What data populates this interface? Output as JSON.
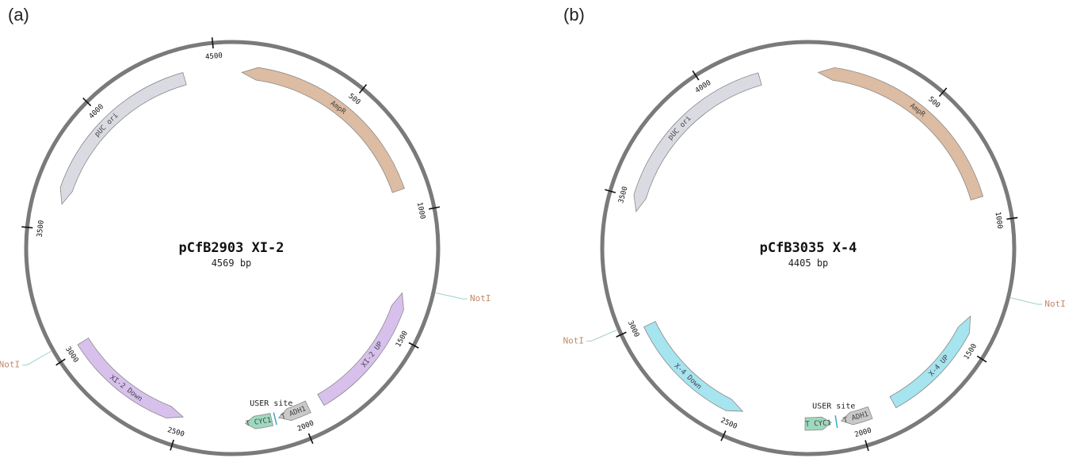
{
  "panels": [
    {
      "panel_label": "(a)",
      "name": "pCfB2903 XI-2",
      "size_label": "4569 bp",
      "length_bp": 4569,
      "ticks": [
        {
          "bp": 500,
          "label": "500"
        },
        {
          "bp": 1000,
          "label": "1000"
        },
        {
          "bp": 1500,
          "label": "1500"
        },
        {
          "bp": 2000,
          "label": "2000"
        },
        {
          "bp": 2500,
          "label": "2500"
        },
        {
          "bp": 3000,
          "label": "3000"
        },
        {
          "bp": 3500,
          "label": "3500"
        },
        {
          "bp": 4000,
          "label": "4000"
        },
        {
          "bp": 4500,
          "label": "4500"
        }
      ],
      "features": [
        {
          "label": "AmpR",
          "start_bp": 40,
          "end_bp": 900,
          "direction": "reverse",
          "color": "#dcbca3"
        },
        {
          "label": "XI-2 UP",
          "start_bp": 1330,
          "end_bp": 1900,
          "direction": "reverse",
          "color": "#d7c1ec"
        },
        {
          "label": "T ADH1",
          "start_bp": 1960,
          "end_bp": 2090,
          "direction": "forward",
          "color": "#c9c9c9"
        },
        {
          "label": "T CYC1",
          "start_bp": 2120,
          "end_bp": 2230,
          "direction": "forward",
          "color": "#9ed9bf"
        },
        {
          "label": "XI-2 Down",
          "start_bp": 2490,
          "end_bp": 3020,
          "direction": "reverse",
          "color": "#d7c1ec"
        },
        {
          "label": "pUC ori",
          "start_bp": 3610,
          "end_bp": 4370,
          "direction": "reverse",
          "color": "#dadbe2"
        }
      ],
      "sites": [
        {
          "label": "NotI",
          "bp": 1300
        },
        {
          "label": "NotI",
          "bp": 3050
        }
      ],
      "user_site": {
        "label": "USER site",
        "bp": 2105
      }
    },
    {
      "panel_label": "(b)",
      "name": "pCfB3035 X-4",
      "size_label": "4405 bp",
      "length_bp": 4405,
      "ticks": [
        {
          "bp": 500,
          "label": "500"
        },
        {
          "bp": 1000,
          "label": "1000"
        },
        {
          "bp": 1500,
          "label": "1500"
        },
        {
          "bp": 2000,
          "label": "2000"
        },
        {
          "bp": 2500,
          "label": "2500"
        },
        {
          "bp": 3000,
          "label": "3000"
        },
        {
          "bp": 3500,
          "label": "3500"
        },
        {
          "bp": 4000,
          "label": "4000"
        }
      ],
      "features": [
        {
          "label": "AmpR",
          "start_bp": 40,
          "end_bp": 900,
          "direction": "reverse",
          "color": "#dcbca3"
        },
        {
          "label": "X-4 UP",
          "start_bp": 1380,
          "end_bp": 1850,
          "direction": "reverse",
          "color": "#a6e4ef"
        },
        {
          "label": "T ADH1",
          "start_bp": 1950,
          "end_bp": 2070,
          "direction": "forward",
          "color": "#c9c9c9"
        },
        {
          "label": "T CYC1",
          "start_bp": 2110,
          "end_bp": 2215,
          "direction": "reverse",
          "color": "#9ed9bf"
        },
        {
          "label": "X-4 Down",
          "start_bp": 2470,
          "end_bp": 2990,
          "direction": "reverse",
          "color": "#a6e4ef"
        },
        {
          "label": "pUC ori",
          "start_bp": 3450,
          "end_bp": 4210,
          "direction": "reverse",
          "color": "#dadbe2"
        }
      ],
      "sites": [
        {
          "label": "NotI",
          "bp": 1270
        },
        {
          "label": "NotI",
          "bp": 3020
        }
      ],
      "user_site": {
        "label": "USER site",
        "bp": 2090
      }
    }
  ],
  "colors": {
    "backbone": "#7a7a7a",
    "site_label": "#c08a6a",
    "site_line": "#9ecfcf",
    "feature_stroke": "#8a8a8a"
  }
}
